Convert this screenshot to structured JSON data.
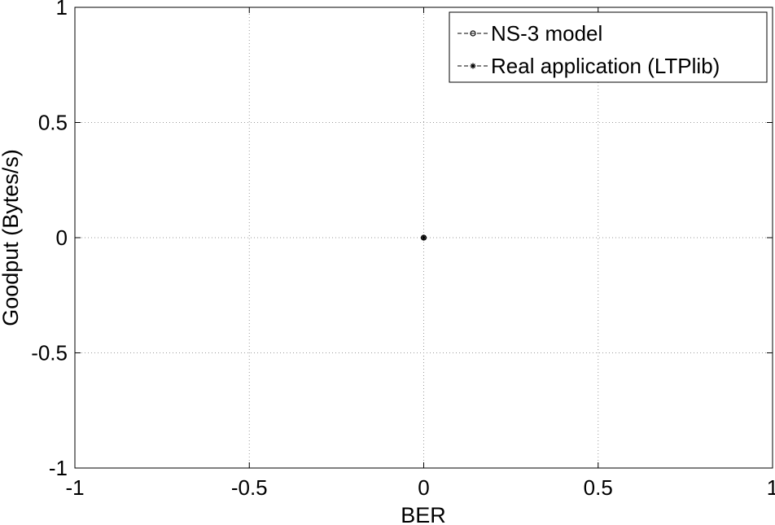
{
  "chart_data": {
    "type": "line",
    "title": "",
    "xlabel": "BER",
    "ylabel": "Goodput (Bytes/s)",
    "xlim": [
      -1,
      1
    ],
    "ylim": [
      -1,
      1
    ],
    "xticks": [
      -1,
      -0.5,
      0,
      0.5,
      1
    ],
    "yticks": [
      -1,
      -0.5,
      0,
      0.5,
      1
    ],
    "xtick_labels": [
      "-1",
      "-0.5",
      "0",
      "0.5",
      "1"
    ],
    "ytick_labels": [
      "-1",
      "-0.5",
      "0",
      "0.5",
      "1"
    ],
    "grid": true,
    "legend_position": "top-right",
    "series": [
      {
        "name": "NS-3 model",
        "marker": "circle",
        "line_style": "dashed",
        "color": "#000000",
        "x": [
          0
        ],
        "y": [
          0
        ]
      },
      {
        "name": "Real application (LTPlib)",
        "marker": "star",
        "line_style": "dashed",
        "color": "#000000",
        "x": [
          0
        ],
        "y": [
          0
        ]
      }
    ]
  }
}
